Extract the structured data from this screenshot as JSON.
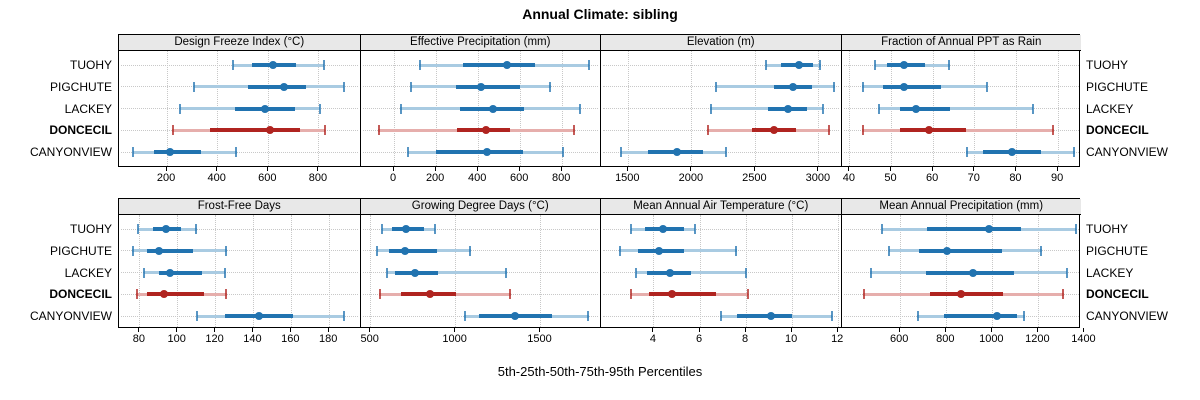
{
  "title": "Annual Climate: sibling",
  "caption": "5th-25th-50th-75th-95th Percentiles",
  "sites": [
    "TUOHY",
    "PIGCHUTE",
    "LACKEY",
    "DONCECIL",
    "CANYONVIEW"
  ],
  "bold_site": "DONCECIL",
  "percentile_labels": [
    "5th",
    "25th",
    "50th",
    "75th",
    "95th"
  ],
  "colors": {
    "blue": "#2173b0",
    "blue_light": "#a9cbe2",
    "red": "#b02420",
    "red_light": "#e6aeac",
    "grid": "#c8c8c8",
    "header_bg": "#e8e8e8",
    "border": "#000000"
  },
  "chart_data": [
    {
      "type": "dot-interval",
      "title": "Design Freeze Index (°C)",
      "xlim": [
        10,
        960
      ],
      "ticks": [
        200,
        400,
        600,
        800
      ],
      "series": [
        {
          "site": "TUOHY",
          "color": "blue",
          "p": [
            460,
            535,
            620,
            710,
            820
          ]
        },
        {
          "site": "PIGCHUTE",
          "color": "blue",
          "p": [
            305,
            520,
            660,
            750,
            900
          ]
        },
        {
          "site": "LACKEY",
          "color": "blue",
          "p": [
            250,
            470,
            585,
            705,
            805
          ]
        },
        {
          "site": "DONCECIL",
          "color": "red",
          "p": [
            220,
            370,
            605,
            725,
            825
          ]
        },
        {
          "site": "CANYONVIEW",
          "color": "blue",
          "p": [
            65,
            150,
            210,
            335,
            475
          ]
        }
      ]
    },
    {
      "type": "dot-interval",
      "title": "Effective Precipitation (mm)",
      "xlim": [
        -160,
        980
      ],
      "ticks": [
        0,
        200,
        400,
        600,
        800
      ],
      "series": [
        {
          "site": "TUOHY",
          "color": "blue",
          "p": [
            120,
            330,
            535,
            670,
            930
          ]
        },
        {
          "site": "PIGCHUTE",
          "color": "blue",
          "p": [
            80,
            295,
            415,
            600,
            745
          ]
        },
        {
          "site": "LACKEY",
          "color": "blue",
          "p": [
            30,
            315,
            470,
            620,
            885
          ]
        },
        {
          "site": "DONCECIL",
          "color": "red",
          "p": [
            -75,
            300,
            435,
            550,
            860
          ]
        },
        {
          "site": "CANYONVIEW",
          "color": "blue",
          "p": [
            65,
            200,
            440,
            615,
            805
          ]
        }
      ]
    },
    {
      "type": "dot-interval",
      "title": "Elevation (m)",
      "xlim": [
        1285,
        3170
      ],
      "ticks": [
        1500,
        2000,
        2500,
        3000
      ],
      "series": [
        {
          "site": "TUOHY",
          "color": "blue",
          "p": [
            2580,
            2700,
            2845,
            2950,
            3015
          ]
        },
        {
          "site": "PIGCHUTE",
          "color": "blue",
          "p": [
            2190,
            2650,
            2800,
            2945,
            3125
          ]
        },
        {
          "site": "LACKEY",
          "color": "blue",
          "p": [
            2145,
            2600,
            2755,
            2910,
            3035
          ]
        },
        {
          "site": "DONCECIL",
          "color": "red",
          "p": [
            2120,
            2470,
            2650,
            2820,
            3085
          ]
        },
        {
          "site": "CANYONVIEW",
          "color": "blue",
          "p": [
            1440,
            1655,
            1885,
            2090,
            2270
          ]
        }
      ]
    },
    {
      "type": "dot-interval",
      "title": "Fraction of Annual PPT as Rain",
      "xlim": [
        38,
        95.5
      ],
      "ticks": [
        40,
        50,
        60,
        70,
        80,
        90
      ],
      "series": [
        {
          "site": "TUOHY",
          "color": "blue",
          "p": [
            46,
            49,
            53,
            58,
            64
          ]
        },
        {
          "site": "PIGCHUTE",
          "color": "blue",
          "p": [
            43,
            48,
            53,
            62,
            73
          ]
        },
        {
          "site": "LACKEY",
          "color": "blue",
          "p": [
            47,
            52,
            56,
            64,
            84
          ]
        },
        {
          "site": "DONCECIL",
          "color": "red",
          "p": [
            43,
            52,
            59,
            68,
            89
          ]
        },
        {
          "site": "CANYONVIEW",
          "color": "blue",
          "p": [
            68,
            72,
            79,
            86,
            94
          ]
        }
      ]
    },
    {
      "type": "dot-interval",
      "title": "Frost-Free Days",
      "xlim": [
        69,
        196
      ],
      "ticks": [
        80,
        100,
        120,
        140,
        160,
        180
      ],
      "series": [
        {
          "site": "TUOHY",
          "color": "blue",
          "p": [
            79,
            87,
            94,
            102,
            110
          ]
        },
        {
          "site": "PIGCHUTE",
          "color": "blue",
          "p": [
            76,
            84,
            90,
            108,
            126
          ]
        },
        {
          "site": "LACKEY",
          "color": "blue",
          "p": [
            82,
            90,
            96,
            113,
            125
          ]
        },
        {
          "site": "DONCECIL",
          "color": "red",
          "p": [
            78,
            84,
            93,
            114,
            126
          ]
        },
        {
          "site": "CANYONVIEW",
          "color": "blue",
          "p": [
            110,
            125,
            143,
            161,
            188
          ]
        }
      ]
    },
    {
      "type": "dot-interval",
      "title": "Growing Degree Days (°C)",
      "xlim": [
        440,
        1850
      ],
      "ticks": [
        500,
        1000,
        1500
      ],
      "series": [
        {
          "site": "TUOHY",
          "color": "blue",
          "p": [
            565,
            625,
            710,
            815,
            880
          ]
        },
        {
          "site": "PIGCHUTE",
          "color": "blue",
          "p": [
            535,
            610,
            700,
            890,
            1090
          ]
        },
        {
          "site": "LACKEY",
          "color": "blue",
          "p": [
            595,
            645,
            760,
            895,
            1300
          ]
        },
        {
          "site": "DONCECIL",
          "color": "red",
          "p": [
            550,
            680,
            850,
            1005,
            1325
          ]
        },
        {
          "site": "CANYONVIEW",
          "color": "blue",
          "p": [
            1050,
            1140,
            1350,
            1565,
            1785
          ]
        }
      ]
    },
    {
      "type": "dot-interval",
      "title": "Mean Annual Air Temperature (°C)",
      "xlim": [
        1.7,
        12.1
      ],
      "ticks": [
        4,
        6,
        8,
        10,
        12
      ],
      "series": [
        {
          "site": "TUOHY",
          "color": "blue",
          "p": [
            3.0,
            3.6,
            4.4,
            5.3,
            5.8
          ]
        },
        {
          "site": "PIGCHUTE",
          "color": "blue",
          "p": [
            2.5,
            3.3,
            4.2,
            5.3,
            7.6
          ]
        },
        {
          "site": "LACKEY",
          "color": "blue",
          "p": [
            3.2,
            3.7,
            4.7,
            5.6,
            8.0
          ]
        },
        {
          "site": "DONCECIL",
          "color": "red",
          "p": [
            3.0,
            3.8,
            4.8,
            6.7,
            8.1
          ]
        },
        {
          "site": "CANYONVIEW",
          "color": "blue",
          "p": [
            6.9,
            7.6,
            9.1,
            10.0,
            11.75
          ]
        }
      ]
    },
    {
      "type": "dot-interval",
      "title": "Mean Annual Precipitation (mm)",
      "xlim": [
        345,
        1385
      ],
      "ticks": [
        600,
        800,
        1000,
        1200,
        1400
      ],
      "series": [
        {
          "site": "TUOHY",
          "color": "blue",
          "p": [
            520,
            715,
            985,
            1125,
            1365
          ]
        },
        {
          "site": "PIGCHUTE",
          "color": "blue",
          "p": [
            550,
            680,
            805,
            1040,
            1215
          ]
        },
        {
          "site": "LACKEY",
          "color": "blue",
          "p": [
            470,
            710,
            915,
            1095,
            1325
          ]
        },
        {
          "site": "DONCECIL",
          "color": "red",
          "p": [
            440,
            730,
            865,
            1045,
            1310
          ]
        },
        {
          "site": "CANYONVIEW",
          "color": "blue",
          "p": [
            675,
            790,
            1020,
            1105,
            1140
          ]
        }
      ]
    }
  ]
}
